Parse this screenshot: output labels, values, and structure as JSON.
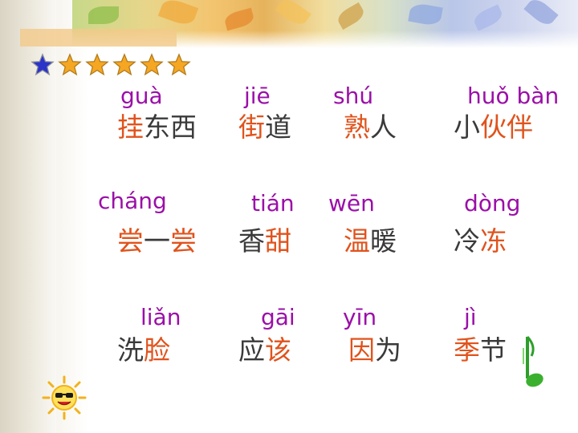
{
  "colors": {
    "pinyin": "#9b0fa8",
    "highlight": "#e0531c",
    "text": "#3a3a3a",
    "star": "#f5a623",
    "star_first": "#2b33c9"
  },
  "stars": [
    "blue-star",
    "orange-star",
    "orange-star",
    "orange-star",
    "orange-star",
    "orange-star"
  ],
  "rows": [
    [
      {
        "pinyin": "guà",
        "highlight": "挂",
        "rest": "东西",
        "before": ""
      },
      {
        "pinyin": "jiē",
        "highlight": "街",
        "rest": "道",
        "before": ""
      },
      {
        "pinyin": "shú",
        "highlight": "熟",
        "rest": "人",
        "before": ""
      },
      {
        "pinyin": "huǒ bàn",
        "highlight": "伙伴",
        "rest": "",
        "before": "小"
      }
    ],
    [
      {
        "pinyin": "cháng",
        "highlight": "尝",
        "rest": "一",
        "tail": "尝",
        "before": ""
      },
      {
        "pinyin": "tián",
        "highlight": "甜",
        "rest": "",
        "before": "香"
      },
      {
        "pinyin": "wēn",
        "highlight": "温",
        "rest": "暖",
        "before": ""
      },
      {
        "pinyin": "dòng",
        "highlight": "冻",
        "rest": "",
        "before": "冷"
      }
    ],
    [
      {
        "pinyin": "liǎn",
        "highlight": "脸",
        "rest": "",
        "before": "洗"
      },
      {
        "pinyin": "gāi",
        "highlight": "该",
        "rest": "",
        "before": "应"
      },
      {
        "pinyin": "yīn",
        "highlight": "因",
        "rest": "为",
        "before": ""
      },
      {
        "pinyin": "jì",
        "highlight": "季",
        "rest": "节",
        "before": ""
      }
    ]
  ]
}
